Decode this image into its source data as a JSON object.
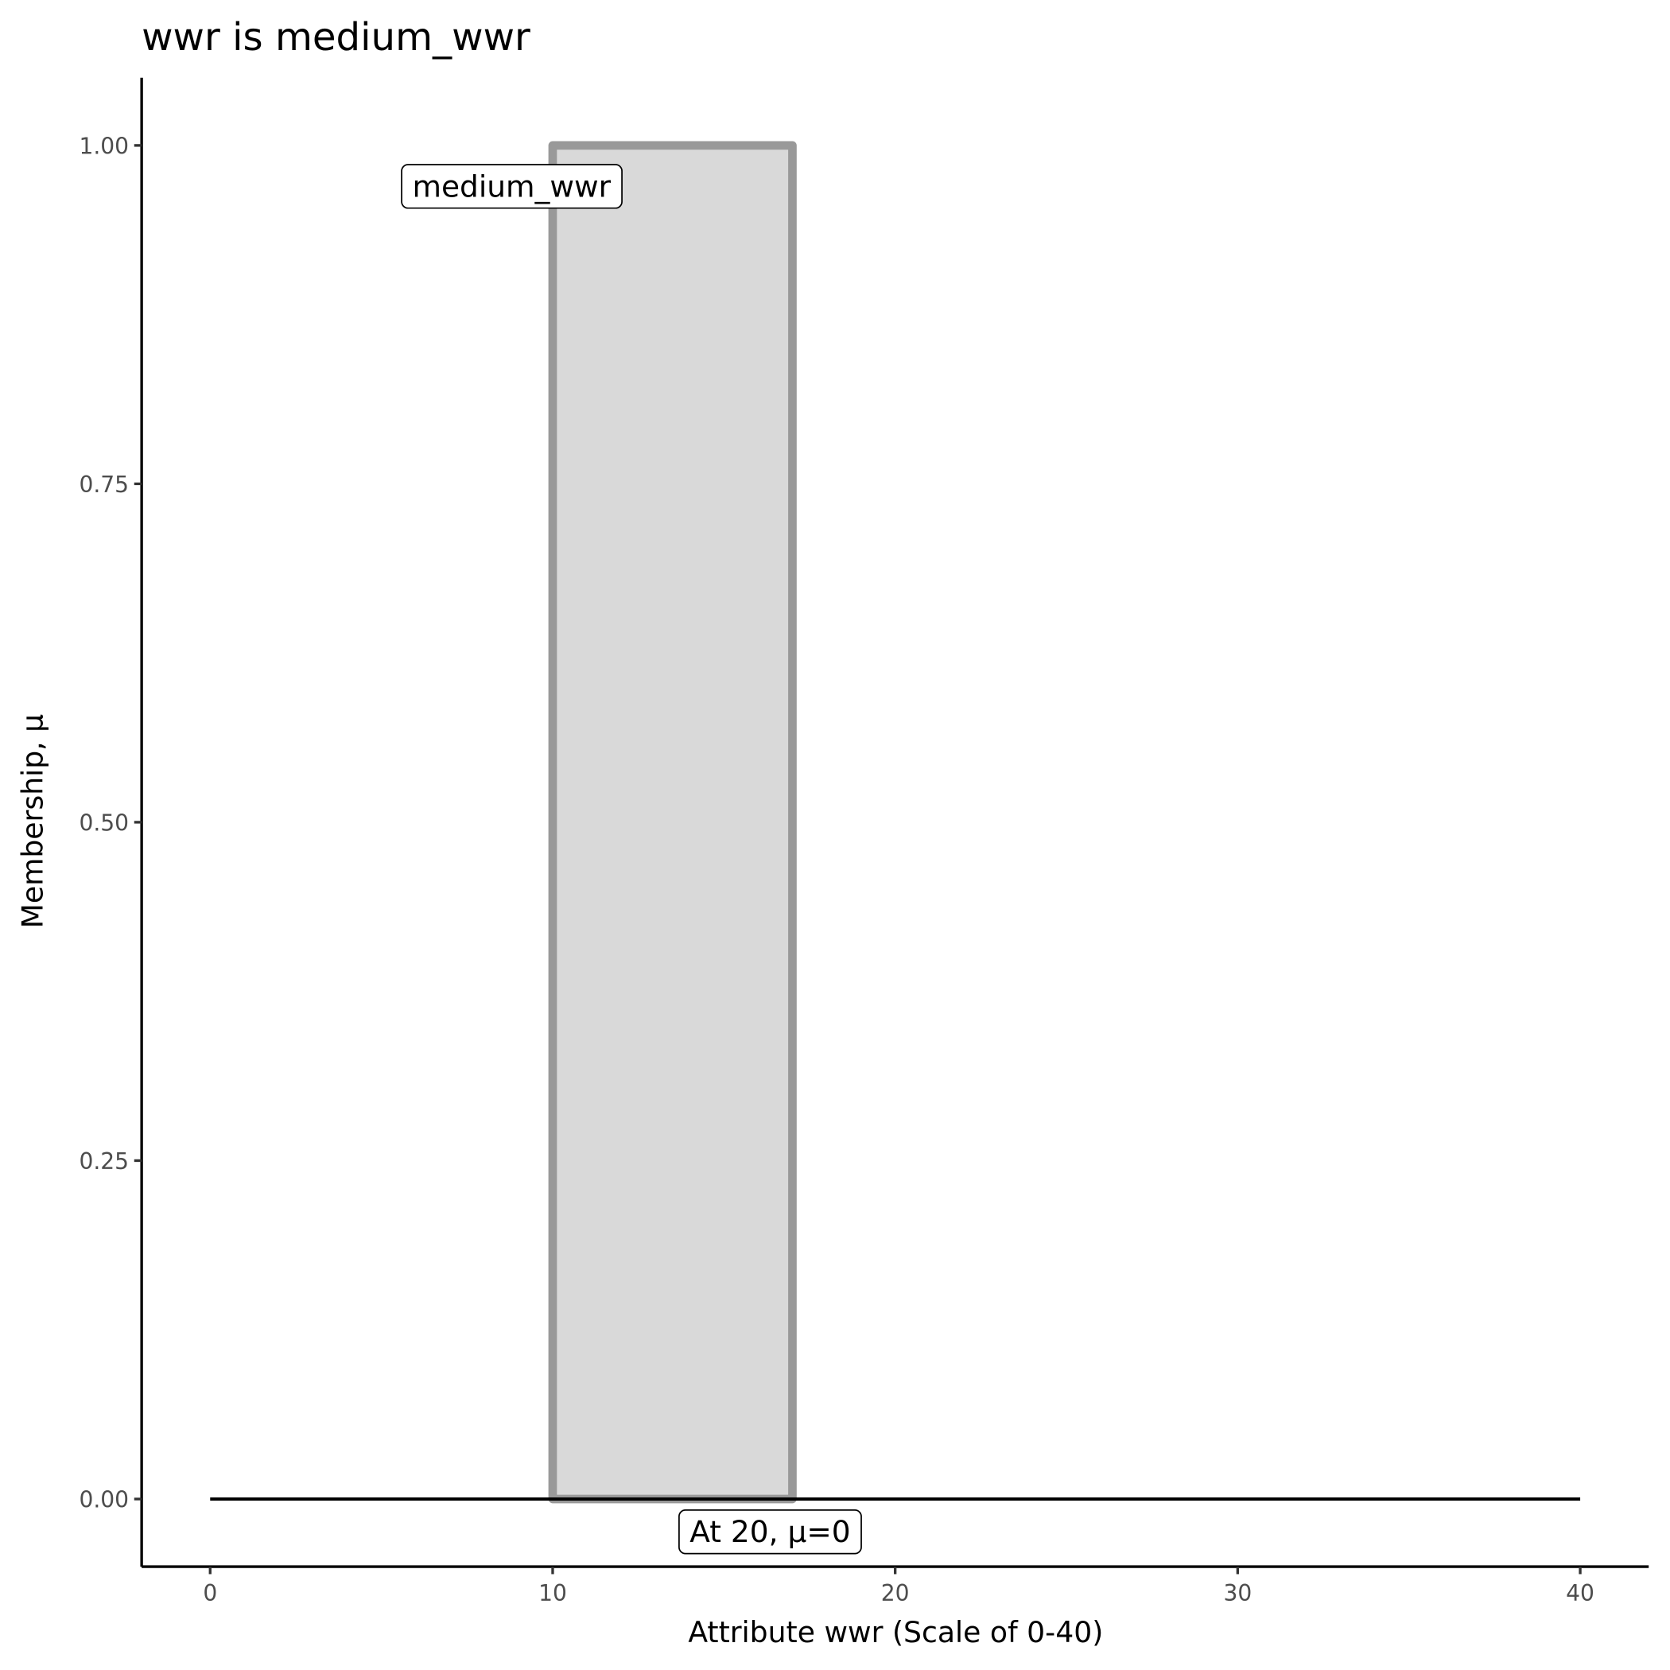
{
  "chart_data": {
    "type": "area",
    "title": "wwr is medium_wwr",
    "xlabel": "Attribute wwr (Scale of 0-40)",
    "ylabel": "Membership, μ",
    "xlim": [
      -2,
      42
    ],
    "ylim": [
      -0.05,
      1.05
    ],
    "xticks": [
      0,
      10,
      20,
      30,
      40
    ],
    "xtick_labels": [
      "0",
      "10",
      "20",
      "30",
      "40"
    ],
    "yticks": [
      0,
      0.25,
      0.5,
      0.75,
      1
    ],
    "ytick_labels": [
      "0.00",
      "0.25",
      "0.50",
      "0.75",
      "1.00"
    ],
    "grid": false,
    "series": [
      {
        "x": [
          10,
          10,
          17,
          17
        ],
        "y": [
          0,
          1,
          1,
          0
        ],
        "fill": "#d9d9d9",
        "stroke": "#999999"
      }
    ],
    "reference_line": {
      "x": [
        0,
        40
      ],
      "y": [
        0,
        0
      ],
      "color": "#000000"
    },
    "annotations": [
      {
        "text": "medium_wwr",
        "x": 8.8,
        "y": 0.97
      },
      {
        "text": "At 20, μ=0",
        "x": 16.35,
        "y": -0.024
      }
    ]
  }
}
